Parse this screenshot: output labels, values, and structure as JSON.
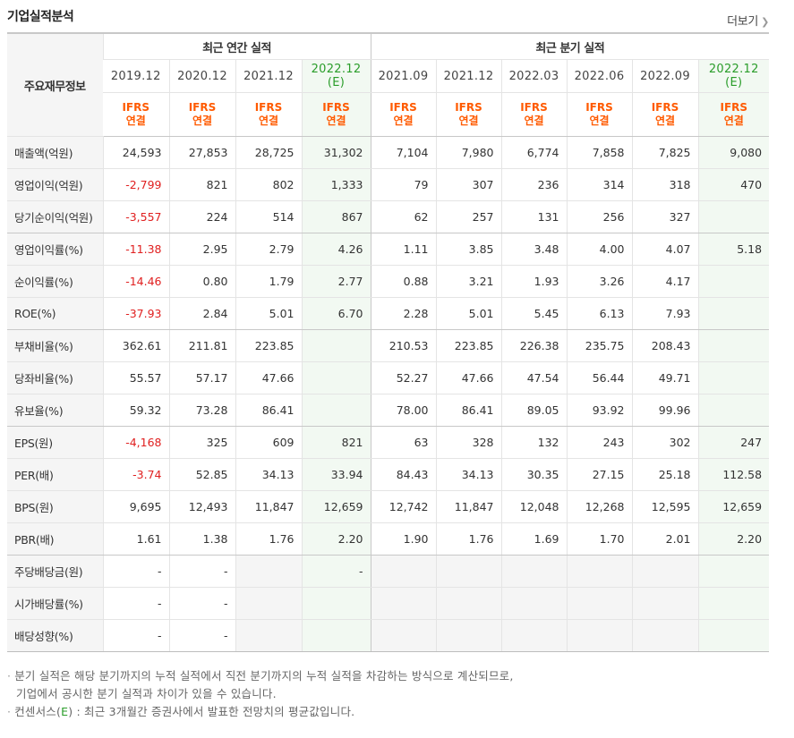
{
  "section_title": "기업실적분석",
  "more_link": "더보기",
  "corner_label": "주요재무정보",
  "groups": {
    "annual": "최근 연간 실적",
    "quarterly": "최근 분기 실적"
  },
  "periods": {
    "annual": [
      {
        "label": "2019.12",
        "sub": ""
      },
      {
        "label": "2020.12",
        "sub": ""
      },
      {
        "label": "2021.12",
        "sub": ""
      },
      {
        "label": "2022.12",
        "sub": "(E)"
      }
    ],
    "quarterly": [
      {
        "label": "2021.09",
        "sub": ""
      },
      {
        "label": "2021.12",
        "sub": ""
      },
      {
        "label": "2022.03",
        "sub": ""
      },
      {
        "label": "2022.06",
        "sub": ""
      },
      {
        "label": "2022.09",
        "sub": ""
      },
      {
        "label": "2022.12",
        "sub": "(E)"
      }
    ]
  },
  "basis": {
    "line1": "IFRS",
    "line2": "연결"
  },
  "rows": [
    {
      "label": "매출액(억원)",
      "values": [
        "24,593",
        "27,853",
        "28,725",
        "31,302",
        "7,104",
        "7,980",
        "6,774",
        "7,858",
        "7,825",
        "9,080"
      ]
    },
    {
      "label": "영업이익(억원)",
      "values": [
        "-2,799",
        "821",
        "802",
        "1,333",
        "79",
        "307",
        "236",
        "314",
        "318",
        "470"
      ]
    },
    {
      "label": "당기순이익(억원)",
      "values": [
        "-3,557",
        "224",
        "514",
        "867",
        "62",
        "257",
        "131",
        "256",
        "327",
        ""
      ]
    },
    {
      "label": "영업이익률(%)",
      "values": [
        "-11.38",
        "2.95",
        "2.79",
        "4.26",
        "1.11",
        "3.85",
        "3.48",
        "4.00",
        "4.07",
        "5.18"
      ]
    },
    {
      "label": "순이익률(%)",
      "values": [
        "-14.46",
        "0.80",
        "1.79",
        "2.77",
        "0.88",
        "3.21",
        "1.93",
        "3.26",
        "4.17",
        ""
      ]
    },
    {
      "label": "ROE(%)",
      "values": [
        "-37.93",
        "2.84",
        "5.01",
        "6.70",
        "2.28",
        "5.01",
        "5.45",
        "6.13",
        "7.93",
        ""
      ]
    },
    {
      "label": "부채비율(%)",
      "values": [
        "362.61",
        "211.81",
        "223.85",
        "",
        "210.53",
        "223.85",
        "226.38",
        "235.75",
        "208.43",
        ""
      ]
    },
    {
      "label": "당좌비율(%)",
      "values": [
        "55.57",
        "57.17",
        "47.66",
        "",
        "52.27",
        "47.66",
        "47.54",
        "56.44",
        "49.71",
        ""
      ]
    },
    {
      "label": "유보율(%)",
      "values": [
        "59.32",
        "73.28",
        "86.41",
        "",
        "78.00",
        "86.41",
        "89.05",
        "93.92",
        "99.96",
        ""
      ]
    },
    {
      "label": "EPS(원)",
      "values": [
        "-4,168",
        "325",
        "609",
        "821",
        "63",
        "328",
        "132",
        "243",
        "302",
        "247"
      ]
    },
    {
      "label": "PER(배)",
      "values": [
        "-3.74",
        "52.85",
        "34.13",
        "33.94",
        "84.43",
        "34.13",
        "30.35",
        "27.15",
        "25.18",
        "112.58"
      ]
    },
    {
      "label": "BPS(원)",
      "values": [
        "9,695",
        "12,493",
        "11,847",
        "12,659",
        "12,742",
        "11,847",
        "12,048",
        "12,268",
        "12,595",
        "12,659"
      ]
    },
    {
      "label": "PBR(배)",
      "values": [
        "1.61",
        "1.38",
        "1.76",
        "2.20",
        "1.90",
        "1.76",
        "1.69",
        "1.70",
        "2.01",
        "2.20"
      ]
    },
    {
      "label": "주당배당금(원)",
      "values": [
        "-",
        "-",
        "",
        "-",
        "",
        "",
        "",
        "",
        "",
        ""
      ]
    },
    {
      "label": "시가배당률(%)",
      "values": [
        "-",
        "-",
        "",
        "",
        "",
        "",
        "",
        "",
        "",
        ""
      ]
    },
    {
      "label": "배당성향(%)",
      "values": [
        "-",
        "-",
        "",
        "",
        "",
        "",
        "",
        "",
        "",
        ""
      ]
    }
  ],
  "notes": {
    "note1_line1": "분기 실적은 해당 분기까지의 누적 실적에서 직전 분기까지의 누적 실적을 차감하는 방식으로 계산되므로,",
    "note1_line2": "기업에서 공시한 분기 실적과 차이가 있을 수 있습니다.",
    "note2_prefix": "컨센서스(",
    "note2_mark": "E",
    "note2_suffix": ") : 최근 3개월간 증권사에서 발표한 전망치의 평균값입니다."
  }
}
